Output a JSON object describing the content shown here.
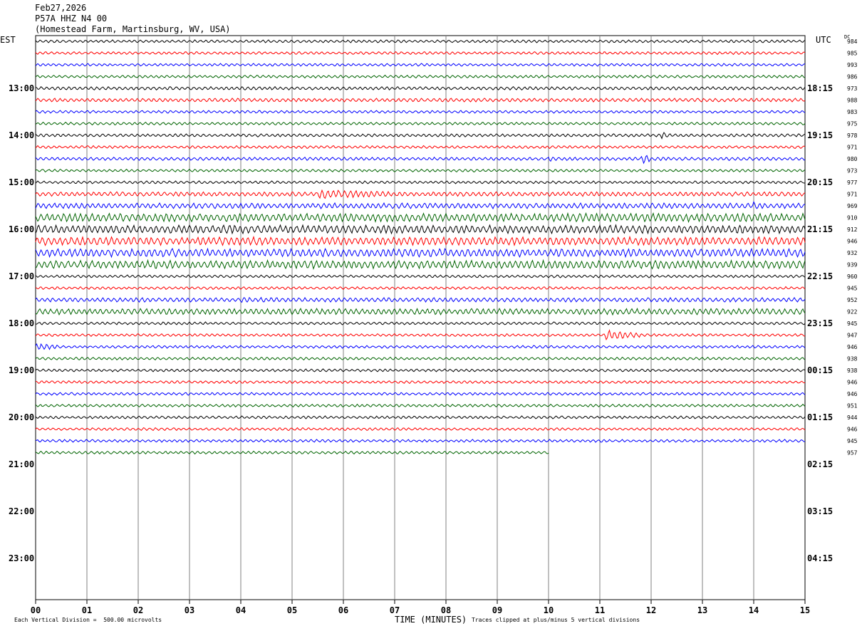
{
  "header": {
    "date": "Feb27,2026",
    "station": "P57A HHZ N4 00",
    "location": "(Homestead Farm, Martinsburg, WV, USA)"
  },
  "left_tz": "EST",
  "right_tz": "UTC",
  "dc_label": "DC",
  "footer": {
    "scale": "Each Vertical Division =  500.00 microvolts",
    "xlabel": "TIME (MINUTES)",
    "clip": "Traces clipped at plus/minus 5 vertical divisions"
  },
  "colors": {
    "trace_cycle": [
      "#000000",
      "#ff0000",
      "#0000ff",
      "#006400"
    ],
    "grid": "#808080"
  },
  "chart_data": {
    "type": "line",
    "title": "",
    "xlabel": "TIME (MINUTES)",
    "x_ticks": [
      "00",
      "01",
      "02",
      "03",
      "04",
      "05",
      "06",
      "07",
      "08",
      "09",
      "10",
      "11",
      "12",
      "13",
      "14",
      "15"
    ],
    "xlim": [
      0,
      15
    ],
    "trace_minutes": 15,
    "last_trace_end_minute": 10,
    "left_hour_labels": [
      "13:00",
      "14:00",
      "15:00",
      "16:00",
      "17:00",
      "18:00",
      "19:00",
      "20:00",
      "21:00",
      "22:00",
      "23:00"
    ],
    "right_hour_labels": [
      "18:15",
      "19:15",
      "20:15",
      "21:15",
      "22:15",
      "23:15",
      "00:15",
      "01:15",
      "02:15",
      "03:15",
      "04:15"
    ],
    "trace_count": 36,
    "dc_offsets": [
      "984",
      "985",
      "993",
      "986",
      "973",
      "988",
      "983",
      "975",
      "978",
      "971",
      "980",
      "973",
      "977",
      "971",
      "969",
      "910",
      "912",
      "946",
      "932",
      "939",
      "960",
      "945",
      "952",
      "922",
      "945",
      "947",
      "946",
      "938",
      "938",
      "946",
      "946",
      "951",
      "944",
      "946",
      "945",
      "957"
    ],
    "trace_amplitude": [
      1,
      1,
      1,
      1,
      1.2,
      1.3,
      1,
      1,
      1.1,
      1,
      1.2,
      1,
      1,
      1.6,
      2,
      3,
      3,
      3,
      3,
      3,
      1,
      1,
      1.6,
      2.2,
      1,
      1,
      1,
      1,
      1,
      1,
      1,
      1,
      1,
      1,
      1,
      1
    ],
    "events": [
      {
        "trace": 13,
        "start_min": 5.5,
        "end_min": 7.3,
        "amp": 7
      },
      {
        "trace": 10,
        "start_min": 11.8,
        "end_min": 12.0,
        "amp": 8
      },
      {
        "trace": 10,
        "start_min": 10.0,
        "end_min": 10.1,
        "amp": 6
      },
      {
        "trace": 8,
        "start_min": 12.2,
        "end_min": 12.4,
        "amp": 6
      },
      {
        "trace": 25,
        "start_min": 11.1,
        "end_min": 11.8,
        "amp": 8
      },
      {
        "trace": 26,
        "start_min": 0.0,
        "end_min": 0.45,
        "amp": 6
      },
      {
        "trace": 14,
        "start_min": 14.0,
        "end_min": 14.3,
        "amp": 6
      },
      {
        "trace": 22,
        "start_min": 4.0,
        "end_min": 6.5,
        "amp": 4
      },
      {
        "trace": 23,
        "start_min": 4.0,
        "end_min": 8.2,
        "amp": 4
      }
    ]
  }
}
